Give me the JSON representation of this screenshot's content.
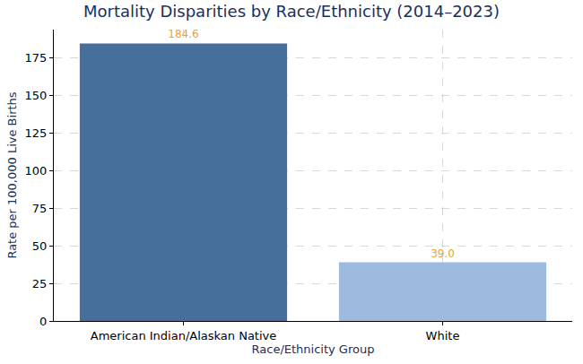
{
  "chart_data": {
    "type": "bar",
    "title": "Mortality Disparities by Race/Ethnicity (2014–2023)",
    "x_label": "Race/Ethnicity Group",
    "y_label": "Rate per 100,000 Live Births",
    "categories": [
      "American Indian/Alaskan Native",
      "White"
    ],
    "values": [
      184.6,
      39.0
    ],
    "value_labels": [
      "184.6",
      "39.0"
    ],
    "colors": [
      "#46709b",
      "#9dbbdf"
    ],
    "ylim": [
      0,
      193.8
    ],
    "yticks": [
      0,
      25,
      50,
      75,
      100,
      125,
      150,
      175
    ],
    "grid": true,
    "data_labels": true
  }
}
